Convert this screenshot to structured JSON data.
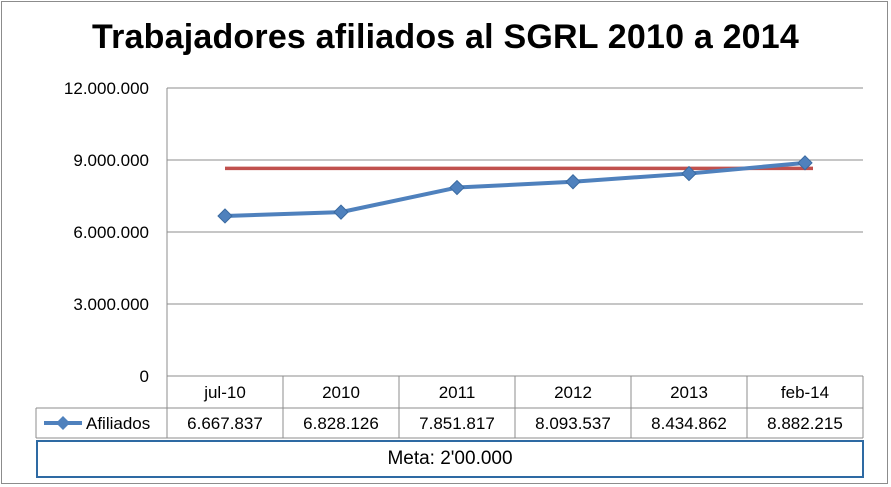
{
  "chart_data": {
    "type": "line",
    "title": "Trabajadores afiliados al SGRL 2010 a 2014",
    "categories": [
      "jul-10",
      "2010",
      "2011",
      "2012",
      "2013",
      "feb-14"
    ],
    "series": [
      {
        "name": "Afiliados",
        "values": [
          6667837,
          6828126,
          7851817,
          8093537,
          8434862,
          8882215
        ],
        "value_labels": [
          "6.667.837",
          "6.828.126",
          "7.851.817",
          "8.093.537",
          "8.434.862",
          "8.882.215"
        ],
        "color": "#4f81bd",
        "marker": "diamond"
      }
    ],
    "reference_line": {
      "value": 8650000,
      "color": "#c0504d"
    },
    "yticks": [
      0,
      3000000,
      6000000,
      9000000,
      12000000
    ],
    "ytick_labels": [
      "0",
      "3.000.000",
      "6.000.000",
      "9.000.000",
      "12.000.000"
    ],
    "ylim": [
      0,
      12000000
    ],
    "grid": true,
    "data_table": true,
    "footer_note": "Meta: 2'00.000"
  }
}
